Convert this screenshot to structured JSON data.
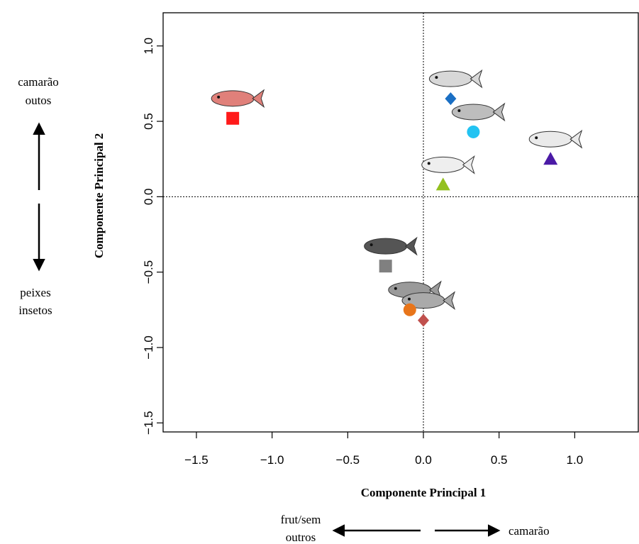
{
  "chart_data": {
    "type": "scatter",
    "xlabel": "Componente Principal 1",
    "ylabel": "Componente Principal 2",
    "xlim": [
      -1.72,
      1.42
    ],
    "ylim": [
      -1.56,
      1.22
    ],
    "x_ticks": [
      "−1.5",
      "−1.0",
      "−0.5",
      "0.0",
      "0.5",
      "1.0"
    ],
    "x_tick_values": [
      -1.5,
      -1.0,
      -0.5,
      0.0,
      0.5,
      1.0
    ],
    "y_ticks": [
      "−1.5",
      "−1.0",
      "−0.5",
      "0.0",
      "0.5",
      "1.0"
    ],
    "y_tick_values": [
      -1.5,
      -1.0,
      -0.5,
      0.0,
      0.5,
      1.0
    ],
    "reference_lines": {
      "x": 0.0,
      "y": 0.0,
      "style": "dotted"
    },
    "points": [
      {
        "x": -1.26,
        "y": 0.52,
        "marker": "square",
        "color": "#ff1a1a",
        "icon": "piranha-fish-icon",
        "icon_color": "#e0807a"
      },
      {
        "x": 0.18,
        "y": 0.65,
        "marker": "diamond",
        "color": "#1a6fc4",
        "icon": "slender-silver-fish-icon",
        "icon_color": "#d8d8d8"
      },
      {
        "x": 0.33,
        "y": 0.43,
        "marker": "circle",
        "color": "#22c3f2",
        "icon": "catfish-icon",
        "icon_color": "#bdbdbd"
      },
      {
        "x": 0.84,
        "y": 0.25,
        "marker": "triangle",
        "color": "#4b1aa6",
        "icon": "croaker-fish-icon",
        "icon_color": "#eaeaea"
      },
      {
        "x": 0.13,
        "y": 0.08,
        "marker": "triangle",
        "color": "#93c01f",
        "icon": "striped-catfish-icon",
        "icon_color": "#eeeeee"
      },
      {
        "x": -0.25,
        "y": -0.46,
        "marker": "square",
        "color": "#808080",
        "icon": "dark-piranha-icon",
        "icon_color": "#555555"
      },
      {
        "x": -0.09,
        "y": -0.75,
        "marker": "circle",
        "color": "#e8751a",
        "icon": "silver-characin-icon",
        "icon_color": "#9a9a9a"
      },
      {
        "x": 0.0,
        "y": -0.82,
        "marker": "diamond",
        "color": "#c0504d",
        "icon": "trahira-fish-icon",
        "icon_color": "#aaaaaa"
      }
    ]
  },
  "annotations": {
    "left_top": [
      "camarão",
      "outos"
    ],
    "left_bottom": [
      "peixes",
      "insetos"
    ],
    "bottom_left": [
      "frut/sem",
      "outros"
    ],
    "bottom_right": "camarão"
  }
}
